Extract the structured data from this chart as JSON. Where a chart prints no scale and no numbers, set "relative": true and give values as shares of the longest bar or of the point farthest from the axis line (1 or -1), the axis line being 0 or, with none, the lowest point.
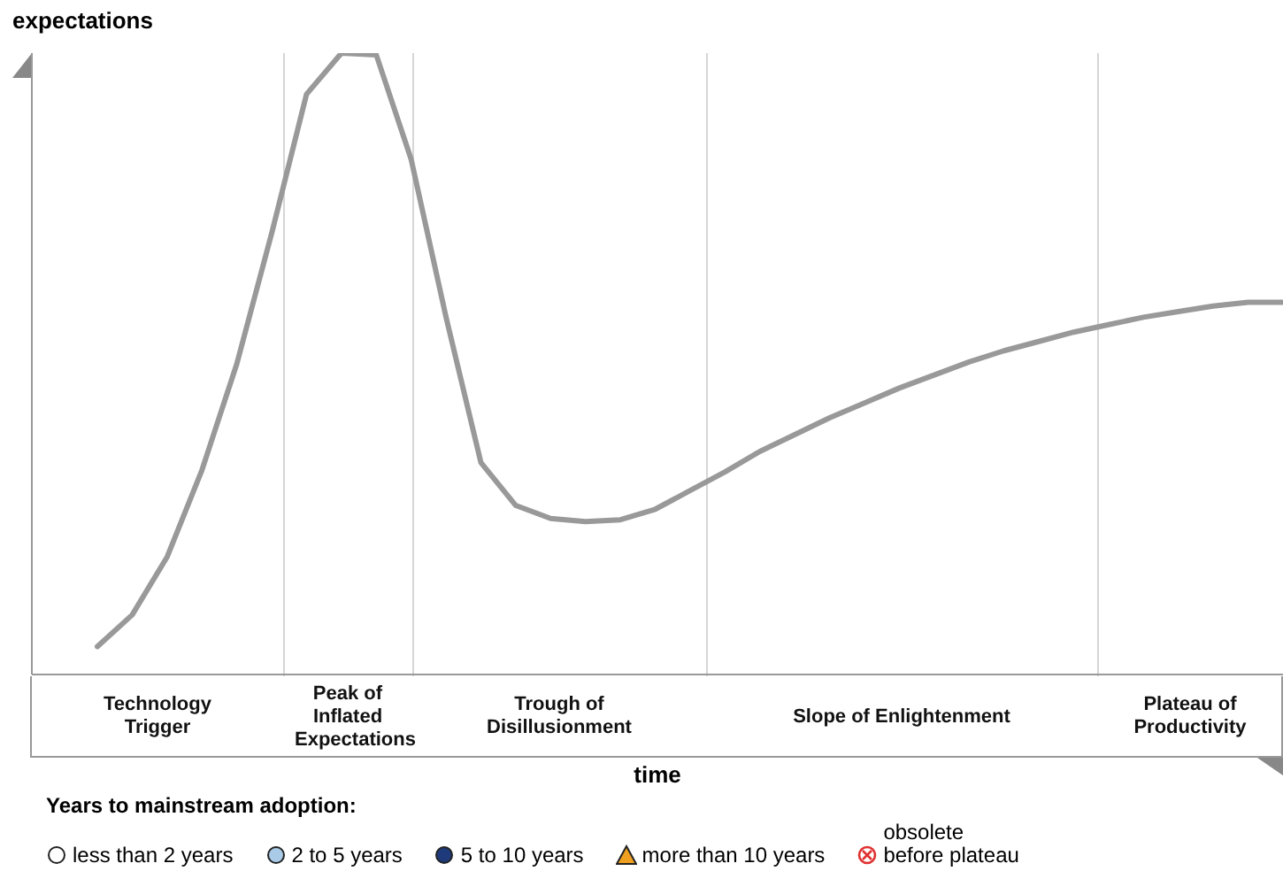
{
  "chart_data": {
    "type": "line",
    "relative": true,
    "xlabel": "time",
    "ylabel": "expectations",
    "categories": [
      null,
      null,
      null,
      null,
      null,
      null,
      null,
      null,
      null,
      null,
      null,
      null,
      null,
      null,
      null,
      null,
      null,
      null,
      null,
      null,
      null,
      null,
      null,
      null,
      null,
      null,
      null,
      null,
      null,
      null,
      null,
      null,
      null,
      null,
      null
    ],
    "series": [
      {
        "color": "#999999",
        "values": [
          0.045,
          0.096,
          0.189,
          0.329,
          0.5,
          0.71,
          0.934,
          1,
          0.997,
          0.829,
          0.575,
          0.341,
          0.272,
          0.251,
          0.246,
          0.249,
          0.266,
          0.296,
          0.326,
          0.359,
          0.386,
          0.413,
          0.437,
          0.461,
          0.482,
          0.503,
          0.521,
          0.536,
          0.551,
          0.563,
          0.575,
          0.584,
          0.593,
          0.599,
          0.599
        ]
      }
    ],
    "annotations": [
      "Technology Trigger",
      "Peak of Inflated Expectations",
      "Trough of Disillusionment",
      "Slope of Enlightenment",
      "Plateau of Productivity",
      "Years to mainstream adoption:",
      "less than 2 years",
      "2 to 5 years",
      "5 to 10 years",
      "more than 10 years",
      "obsolete\nbefore plateau"
    ]
  }
}
